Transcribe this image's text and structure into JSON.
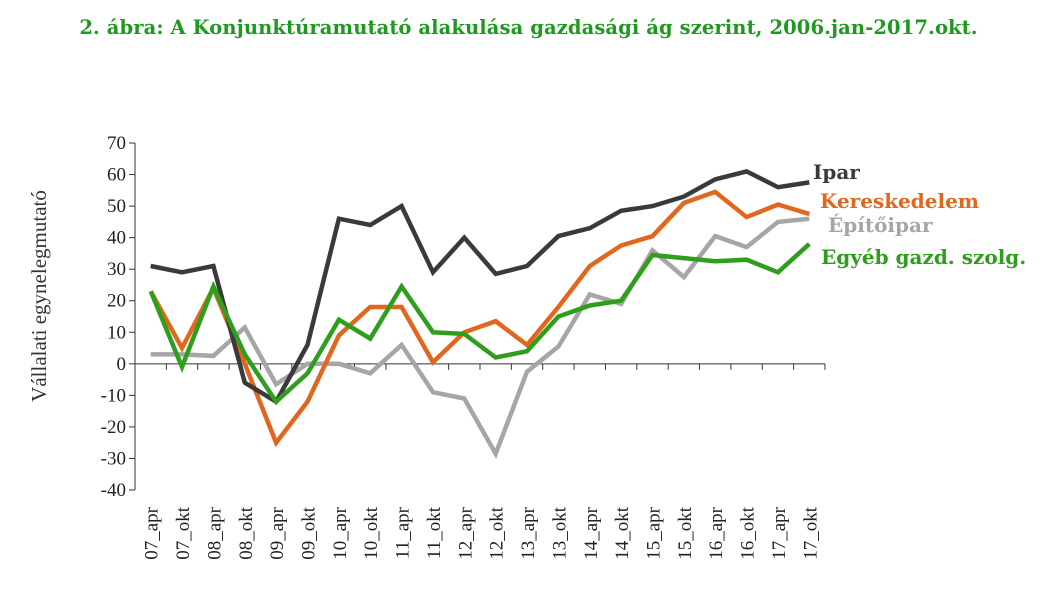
{
  "chart_data": {
    "type": "line",
    "title": "2. ábra: A Konjunktúramutató alakulása gazdasági ág szerint, 2006.jan-2017.okt.",
    "ylabel": "Vállalati egynelegmutató",
    "xlabel": "",
    "ylim": [
      -40,
      70
    ],
    "yticks": [
      -40,
      -30,
      -20,
      -10,
      0,
      10,
      20,
      30,
      40,
      50,
      60,
      70
    ],
    "categories": [
      "07_apr",
      "07_okt",
      "08_apr",
      "08_okt",
      "09_apr",
      "09_okt",
      "10_apr",
      "10_okt",
      "11_apr",
      "11_okt",
      "12_apr",
      "12_okt",
      "13_apr",
      "13_okt",
      "14_apr",
      "14_okt",
      "15_apr",
      "15_okt",
      "16_apr",
      "16_okt",
      "17_apr",
      "17_okt"
    ],
    "grid": false,
    "legend": "inline-right",
    "series": [
      {
        "name": "Ipar",
        "color": "#3a3a3a",
        "values": [
          31,
          29,
          31,
          -6,
          -12,
          6,
          46,
          44,
          50,
          29,
          40,
          28.5,
          31,
          40.5,
          43,
          48.5,
          50,
          53,
          58.5,
          61,
          56,
          57.5
        ]
      },
      {
        "name": "Kereskedelem",
        "color": "#e2671e",
        "values": [
          23,
          5,
          24,
          0,
          -25,
          -12,
          9,
          18,
          18,
          0.5,
          10,
          13.5,
          6,
          18,
          31,
          37.5,
          40.5,
          51,
          54.5,
          46.5,
          50.5,
          47.5
        ]
      },
      {
        "name": "Építőipar",
        "color": "#a6a6a6",
        "values": [
          3,
          3,
          2.5,
          11.5,
          -6.5,
          0,
          0,
          -3,
          6,
          -9,
          -11,
          -28.5,
          -2.5,
          5.5,
          22,
          19,
          36,
          27.5,
          40.5,
          37,
          45,
          46
        ]
      },
      {
        "name": "Egyéb gazd. szolg.",
        "color": "#2f9e1c",
        "values": [
          23,
          -1,
          24.5,
          3,
          -12,
          -3,
          14,
          8,
          24.5,
          10,
          9.5,
          2,
          4,
          15,
          18.5,
          20,
          34.5,
          33.5,
          32.5,
          33,
          29,
          38
        ]
      }
    ]
  }
}
